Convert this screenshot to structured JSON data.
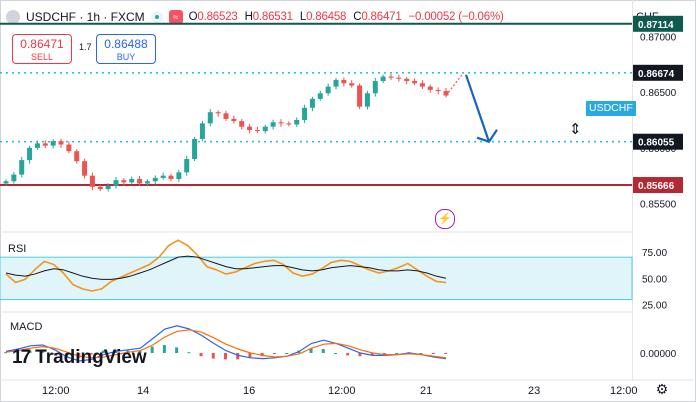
{
  "header": {
    "symbol": "USDCHF · 1h · FXCM",
    "open_label": "O",
    "open": "0.86523",
    "high_label": "H",
    "high": "0.86531",
    "low_label": "L",
    "low": "0.86458",
    "close_label": "C",
    "close": "0.86471",
    "change": "−0.00052 (−0.06%)"
  },
  "trade": {
    "sell_price": "0.86471",
    "sell_label": "SELL",
    "buy_price": "0.86488",
    "buy_label": "BUY",
    "spread": "1.7"
  },
  "currency": "CHF",
  "symbol_tag": "USDCHF",
  "brand": "TradingView",
  "colors": {
    "resistance": "#0e5a4e",
    "support": "#b22833",
    "dotted": "#26c6da",
    "rsi_line": "#f7931a",
    "arrow": "#1565c0"
  },
  "chart_data": [
    {
      "type": "line",
      "name_hint": "USDCHF price (1h candles)",
      "y_ticks": [
        "0.87000",
        "0.86500",
        "0.86000",
        "0.85500"
      ],
      "ylim": [
        0.8537,
        0.8722
      ],
      "x_ticks": [
        "12:00",
        "14",
        "16",
        "12:00",
        "21",
        "23",
        "12:00"
      ],
      "close": [
        0.857,
        0.8576,
        0.8589,
        0.86,
        0.8604,
        0.8602,
        0.8606,
        0.8603,
        0.8597,
        0.8588,
        0.8575,
        0.8565,
        0.8563,
        0.8566,
        0.8571,
        0.8569,
        0.8572,
        0.8568,
        0.857,
        0.8573,
        0.8575,
        0.8572,
        0.8578,
        0.859,
        0.8608,
        0.8622,
        0.8632,
        0.8631,
        0.8626,
        0.8624,
        0.8619,
        0.8616,
        0.8615,
        0.8619,
        0.8623,
        0.8622,
        0.8621,
        0.8625,
        0.8636,
        0.8644,
        0.8649,
        0.8655,
        0.8661,
        0.8658,
        0.8656,
        0.8637,
        0.8649,
        0.866,
        0.8664,
        0.8663,
        0.8662,
        0.866,
        0.8658,
        0.8655,
        0.8652,
        0.8651,
        0.8647
      ],
      "horizontal_levels": [
        {
          "value": 0.87114,
          "label": "0.87114",
          "style": "solid",
          "color": "#0e5a4e"
        },
        {
          "value": 0.86674,
          "label": "0.86674",
          "style": "dotted",
          "color": "#26c6da"
        },
        {
          "value": 0.86055,
          "label": "0.86055",
          "style": "dotted",
          "color": "#26c6da"
        },
        {
          "value": 0.85666,
          "label": "0.85666",
          "style": "solid",
          "color": "#b22833"
        }
      ],
      "annotations": [
        "projected move down from 0.86674 toward 0.86055"
      ]
    },
    {
      "type": "line",
      "title": "RSI",
      "y_ticks": [
        "75.00",
        "50.00",
        "25.00"
      ],
      "ylim": [
        20,
        90
      ],
      "band": [
        30,
        70
      ],
      "rsi": [
        54,
        46,
        49,
        58,
        66,
        63,
        55,
        44,
        40,
        38,
        40,
        47,
        51,
        55,
        59,
        63,
        70,
        81,
        86,
        81,
        72,
        61,
        58,
        54,
        56,
        60,
        64,
        66,
        67,
        63,
        55,
        52,
        54,
        59,
        65,
        67,
        66,
        62,
        58,
        55,
        57,
        60,
        64,
        58,
        52,
        47,
        46
      ],
      "signal": [
        55,
        53,
        52,
        54,
        57,
        59,
        58,
        55,
        52,
        50,
        49,
        49,
        50,
        52,
        55,
        58,
        62,
        66,
        70,
        71,
        70,
        67,
        64,
        61,
        59,
        59,
        60,
        61,
        62,
        62,
        60,
        58,
        57,
        58,
        60,
        61,
        62,
        61,
        60,
        58,
        57,
        57,
        58,
        57,
        55,
        52,
        50
      ]
    },
    {
      "type": "line",
      "title": "MACD",
      "y_ticks": [
        "0.00000"
      ],
      "macd": [
        0.2,
        0.5,
        0.9,
        1.0,
        0.4,
        -0.5,
        -1.0,
        -0.8,
        -0.2,
        0.2,
        0.4,
        0.6,
        1.8,
        3.0,
        3.4,
        3.0,
        2.2,
        1.2,
        0.3,
        -0.3,
        -0.6,
        -0.7,
        -0.6,
        -0.4,
        0.2,
        1.2,
        1.6,
        1.2,
        0.6,
        0.0,
        -0.3,
        -0.3,
        -0.2,
        0.0,
        -0.2,
        -0.5,
        -0.7
      ],
      "signal": [
        0.1,
        0.3,
        0.6,
        0.8,
        0.6,
        0.1,
        -0.4,
        -0.6,
        -0.5,
        -0.2,
        0.1,
        0.3,
        1.0,
        2.0,
        2.7,
        2.9,
        2.6,
        1.9,
        1.1,
        0.5,
        0.0,
        -0.3,
        -0.5,
        -0.4,
        -0.1,
        0.6,
        1.1,
        1.2,
        0.9,
        0.4,
        0.0,
        -0.2,
        -0.2,
        -0.1,
        -0.2,
        -0.4,
        -0.6
      ]
    }
  ]
}
